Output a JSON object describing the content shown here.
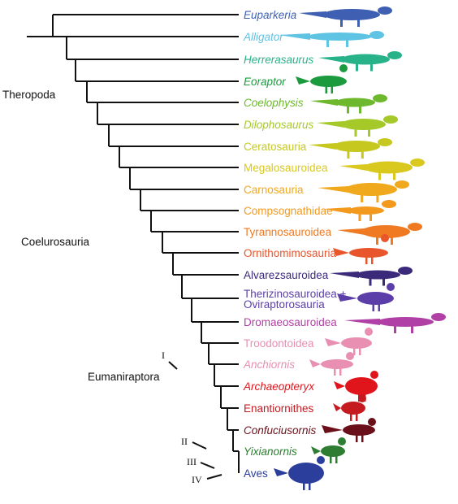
{
  "taxa": [
    {
      "name": "Euparkeria",
      "color": "#3f5fb2",
      "italic": true,
      "silhouette": "crocodile-line-archosaur-icon"
    },
    {
      "name": "Alligator",
      "color": "#5fc3e4",
      "italic": true,
      "silhouette": "alligator-icon"
    },
    {
      "name": "Herrerasaurus",
      "color": "#28b28a",
      "italic": true,
      "silhouette": "herrerasaurus-icon"
    },
    {
      "name": "Eoraptor",
      "color": "#1c9a3e",
      "italic": true,
      "silhouette": "eoraptor-icon"
    },
    {
      "name": "Coelophysis",
      "color": "#6db82c",
      "italic": true,
      "silhouette": "coelophysis-icon"
    },
    {
      "name": "Dilophosaurus",
      "color": "#a6c92a",
      "italic": true,
      "silhouette": "dilophosaurus-icon"
    },
    {
      "name": "Ceratosauria",
      "color": "#c6c820",
      "italic": false,
      "silhouette": "ceratosaur-icon"
    },
    {
      "name": "Megalosauroidea",
      "color": "#d9c81e",
      "italic": false,
      "silhouette": "megalosaur-icon"
    },
    {
      "name": "Carnosauria",
      "color": "#f0a81c",
      "italic": false,
      "silhouette": "carnosaur-icon"
    },
    {
      "name": "Compsognathidae",
      "color": "#f39a1e",
      "italic": false,
      "silhouette": "compsognathid-icon"
    },
    {
      "name": "Tyrannosauroidea",
      "color": "#ef7a22",
      "italic": false,
      "silhouette": "tyrannosaur-icon"
    },
    {
      "name": "Ornithomimosauria",
      "color": "#e8552b",
      "italic": false,
      "silhouette": "ornithomimosaur-icon"
    },
    {
      "name": "Alvarezsauroidea",
      "color": "#3b2a7a",
      "italic": false,
      "silhouette": "alvarezsaur-icon"
    },
    {
      "name": "Therizinosauroidea +\nOviraptorosauria",
      "color": "#5b3ea8",
      "italic": false,
      "silhouette": "therizinosaur-icon"
    },
    {
      "name": "Dromaeosauroidea",
      "color": "#b03fa6",
      "italic": false,
      "silhouette": "dromaeosaur-icon"
    },
    {
      "name": "Troodontoidea",
      "color": "#e88fb2",
      "italic": false,
      "silhouette": "troodontid-icon"
    },
    {
      "name": "Anchiornis",
      "color": "#e88fb2",
      "italic": true,
      "silhouette": "anchiornis-icon"
    },
    {
      "name": "Archaeopteryx",
      "color": "#e0151c",
      "italic": true,
      "silhouette": "archaeopteryx-icon"
    },
    {
      "name": "Enantiornithes",
      "color": "#c41a20",
      "italic": false,
      "silhouette": "enantiornithine-icon"
    },
    {
      "name": "Confuciusornis",
      "color": "#6b0f1a",
      "italic": true,
      "silhouette": "confuciusornis-icon"
    },
    {
      "name": "Yixianornis",
      "color": "#2e7d32",
      "italic": true,
      "silhouette": "yixianornis-icon"
    },
    {
      "name": "Aves",
      "color": "#2b3e9c",
      "italic": false,
      "silhouette": "rooster-icon"
    }
  ],
  "clades": {
    "theropoda": "Theropoda",
    "coelurosauria": "Coelurosauria",
    "eumaniraptora": "Eumaniraptora"
  },
  "nodes": {
    "one": "I",
    "two": "II",
    "three": "III",
    "four": "IV"
  }
}
